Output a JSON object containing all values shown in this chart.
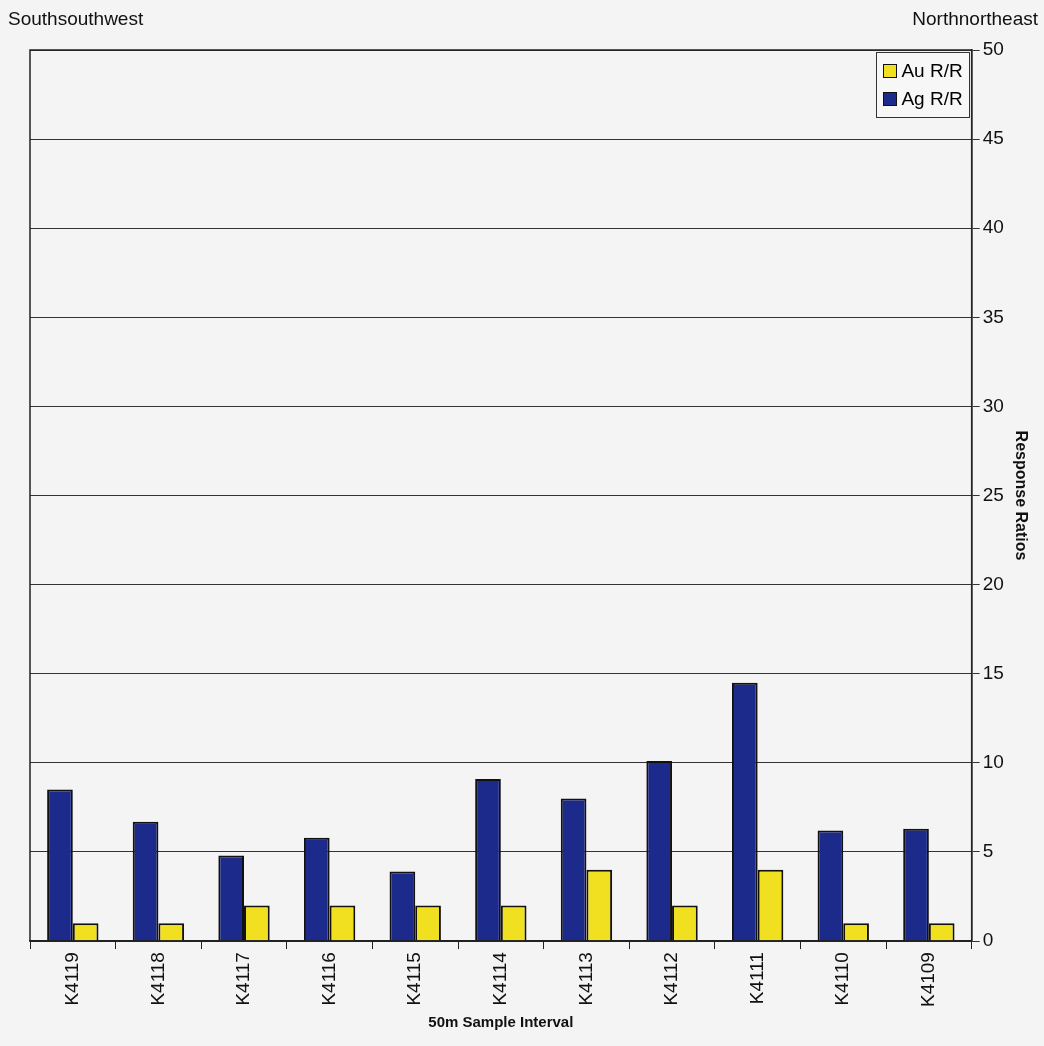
{
  "chart_data": {
    "type": "bar",
    "xlabel": "50m Sample Interval",
    "ylabel": "Response Ratios",
    "annotations": [
      "Southsouthwest",
      "Northnortheast"
    ],
    "categories": [
      "K4119",
      "K4118",
      "K4117",
      "K4116",
      "K4115",
      "K4114",
      "K4113",
      "K4112",
      "K4111",
      "K4110",
      "K4109"
    ],
    "series": [
      {
        "name": "Ag R/R",
        "color": "#1c2a8c",
        "values": [
          8.5,
          6.7,
          4.8,
          5.8,
          3.9,
          9.1,
          8.0,
          10.1,
          14.5,
          6.2,
          6.3
        ]
      },
      {
        "name": "Au R/R",
        "color": "#f0e020",
        "values": [
          1,
          1,
          2,
          2,
          2,
          2,
          4,
          2,
          4,
          1,
          1
        ]
      }
    ],
    "ylim": [
      0,
      50
    ],
    "yticks": [
      0,
      5,
      10,
      15,
      20,
      25,
      30,
      35,
      40,
      45,
      50
    ],
    "grid": "y",
    "legend": "top right"
  }
}
